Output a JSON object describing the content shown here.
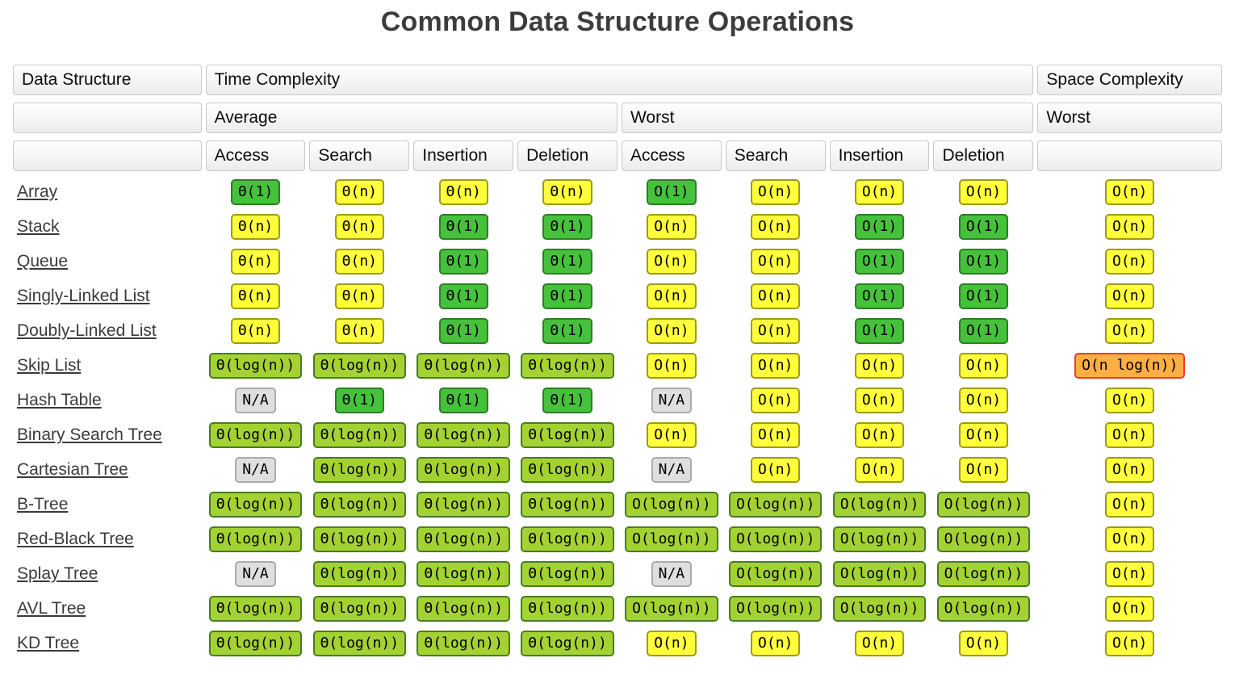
{
  "page": {
    "title": "Common Data Structure Operations"
  },
  "colors": {
    "excellent_green": "#46c13c",
    "good_yellowgreen": "#a4d233",
    "fair_yellow": "#ffff3b",
    "bad_orange": "#ffae45",
    "bad_border_red": "#ef3b24",
    "na_gray": "#dfdfdf",
    "header_border": "#c9c9c9",
    "title_text": "#3c3c3c"
  },
  "table": {
    "headers": {
      "data_structure": "Data Structure",
      "time_complexity": "Time Complexity",
      "space_complexity": "Space Complexity",
      "average": "Average",
      "worst_time": "Worst",
      "worst_space": "Worst",
      "operations": [
        "Access",
        "Search",
        "Insertion",
        "Deletion"
      ]
    },
    "rows": [
      {
        "name": "Array",
        "cells": [
          {
            "text": "Θ(1)",
            "level": "excellent"
          },
          {
            "text": "Θ(n)",
            "level": "fair"
          },
          {
            "text": "Θ(n)",
            "level": "fair"
          },
          {
            "text": "Θ(n)",
            "level": "fair"
          },
          {
            "text": "O(1)",
            "level": "excellent"
          },
          {
            "text": "O(n)",
            "level": "fair"
          },
          {
            "text": "O(n)",
            "level": "fair"
          },
          {
            "text": "O(n)",
            "level": "fair"
          },
          {
            "text": "O(n)",
            "level": "fair"
          }
        ]
      },
      {
        "name": "Stack",
        "cells": [
          {
            "text": "Θ(n)",
            "level": "fair"
          },
          {
            "text": "Θ(n)",
            "level": "fair"
          },
          {
            "text": "Θ(1)",
            "level": "excellent"
          },
          {
            "text": "Θ(1)",
            "level": "excellent"
          },
          {
            "text": "O(n)",
            "level": "fair"
          },
          {
            "text": "O(n)",
            "level": "fair"
          },
          {
            "text": "O(1)",
            "level": "excellent"
          },
          {
            "text": "O(1)",
            "level": "excellent"
          },
          {
            "text": "O(n)",
            "level": "fair"
          }
        ]
      },
      {
        "name": "Queue",
        "cells": [
          {
            "text": "Θ(n)",
            "level": "fair"
          },
          {
            "text": "Θ(n)",
            "level": "fair"
          },
          {
            "text": "Θ(1)",
            "level": "excellent"
          },
          {
            "text": "Θ(1)",
            "level": "excellent"
          },
          {
            "text": "O(n)",
            "level": "fair"
          },
          {
            "text": "O(n)",
            "level": "fair"
          },
          {
            "text": "O(1)",
            "level": "excellent"
          },
          {
            "text": "O(1)",
            "level": "excellent"
          },
          {
            "text": "O(n)",
            "level": "fair"
          }
        ]
      },
      {
        "name": "Singly-Linked List",
        "cells": [
          {
            "text": "Θ(n)",
            "level": "fair"
          },
          {
            "text": "Θ(n)",
            "level": "fair"
          },
          {
            "text": "Θ(1)",
            "level": "excellent"
          },
          {
            "text": "Θ(1)",
            "level": "excellent"
          },
          {
            "text": "O(n)",
            "level": "fair"
          },
          {
            "text": "O(n)",
            "level": "fair"
          },
          {
            "text": "O(1)",
            "level": "excellent"
          },
          {
            "text": "O(1)",
            "level": "excellent"
          },
          {
            "text": "O(n)",
            "level": "fair"
          }
        ]
      },
      {
        "name": "Doubly-Linked List",
        "cells": [
          {
            "text": "Θ(n)",
            "level": "fair"
          },
          {
            "text": "Θ(n)",
            "level": "fair"
          },
          {
            "text": "Θ(1)",
            "level": "excellent"
          },
          {
            "text": "Θ(1)",
            "level": "excellent"
          },
          {
            "text": "O(n)",
            "level": "fair"
          },
          {
            "text": "O(n)",
            "level": "fair"
          },
          {
            "text": "O(1)",
            "level": "excellent"
          },
          {
            "text": "O(1)",
            "level": "excellent"
          },
          {
            "text": "O(n)",
            "level": "fair"
          }
        ]
      },
      {
        "name": "Skip List",
        "cells": [
          {
            "text": "Θ(log(n))",
            "level": "good"
          },
          {
            "text": "Θ(log(n))",
            "level": "good"
          },
          {
            "text": "Θ(log(n))",
            "level": "good"
          },
          {
            "text": "Θ(log(n))",
            "level": "good"
          },
          {
            "text": "O(n)",
            "level": "fair"
          },
          {
            "text": "O(n)",
            "level": "fair"
          },
          {
            "text": "O(n)",
            "level": "fair"
          },
          {
            "text": "O(n)",
            "level": "fair"
          },
          {
            "text": "O(n log(n))",
            "level": "bad"
          }
        ]
      },
      {
        "name": "Hash Table",
        "cells": [
          {
            "text": "N/A",
            "level": "na"
          },
          {
            "text": "Θ(1)",
            "level": "excellent"
          },
          {
            "text": "Θ(1)",
            "level": "excellent"
          },
          {
            "text": "Θ(1)",
            "level": "excellent"
          },
          {
            "text": "N/A",
            "level": "na"
          },
          {
            "text": "O(n)",
            "level": "fair"
          },
          {
            "text": "O(n)",
            "level": "fair"
          },
          {
            "text": "O(n)",
            "level": "fair"
          },
          {
            "text": "O(n)",
            "level": "fair"
          }
        ]
      },
      {
        "name": "Binary Search Tree",
        "cells": [
          {
            "text": "Θ(log(n))",
            "level": "good"
          },
          {
            "text": "Θ(log(n))",
            "level": "good"
          },
          {
            "text": "Θ(log(n))",
            "level": "good"
          },
          {
            "text": "Θ(log(n))",
            "level": "good"
          },
          {
            "text": "O(n)",
            "level": "fair"
          },
          {
            "text": "O(n)",
            "level": "fair"
          },
          {
            "text": "O(n)",
            "level": "fair"
          },
          {
            "text": "O(n)",
            "level": "fair"
          },
          {
            "text": "O(n)",
            "level": "fair"
          }
        ]
      },
      {
        "name": "Cartesian Tree",
        "cells": [
          {
            "text": "N/A",
            "level": "na"
          },
          {
            "text": "Θ(log(n))",
            "level": "good"
          },
          {
            "text": "Θ(log(n))",
            "level": "good"
          },
          {
            "text": "Θ(log(n))",
            "level": "good"
          },
          {
            "text": "N/A",
            "level": "na"
          },
          {
            "text": "O(n)",
            "level": "fair"
          },
          {
            "text": "O(n)",
            "level": "fair"
          },
          {
            "text": "O(n)",
            "level": "fair"
          },
          {
            "text": "O(n)",
            "level": "fair"
          }
        ]
      },
      {
        "name": "B-Tree",
        "cells": [
          {
            "text": "Θ(log(n))",
            "level": "good"
          },
          {
            "text": "Θ(log(n))",
            "level": "good"
          },
          {
            "text": "Θ(log(n))",
            "level": "good"
          },
          {
            "text": "Θ(log(n))",
            "level": "good"
          },
          {
            "text": "O(log(n))",
            "level": "good"
          },
          {
            "text": "O(log(n))",
            "level": "good"
          },
          {
            "text": "O(log(n))",
            "level": "good"
          },
          {
            "text": "O(log(n))",
            "level": "good"
          },
          {
            "text": "O(n)",
            "level": "fair"
          }
        ]
      },
      {
        "name": "Red-Black Tree",
        "cells": [
          {
            "text": "Θ(log(n))",
            "level": "good"
          },
          {
            "text": "Θ(log(n))",
            "level": "good"
          },
          {
            "text": "Θ(log(n))",
            "level": "good"
          },
          {
            "text": "Θ(log(n))",
            "level": "good"
          },
          {
            "text": "O(log(n))",
            "level": "good"
          },
          {
            "text": "O(log(n))",
            "level": "good"
          },
          {
            "text": "O(log(n))",
            "level": "good"
          },
          {
            "text": "O(log(n))",
            "level": "good"
          },
          {
            "text": "O(n)",
            "level": "fair"
          }
        ]
      },
      {
        "name": "Splay Tree",
        "cells": [
          {
            "text": "N/A",
            "level": "na"
          },
          {
            "text": "Θ(log(n))",
            "level": "good"
          },
          {
            "text": "Θ(log(n))",
            "level": "good"
          },
          {
            "text": "Θ(log(n))",
            "level": "good"
          },
          {
            "text": "N/A",
            "level": "na"
          },
          {
            "text": "O(log(n))",
            "level": "good"
          },
          {
            "text": "O(log(n))",
            "level": "good"
          },
          {
            "text": "O(log(n))",
            "level": "good"
          },
          {
            "text": "O(n)",
            "level": "fair"
          }
        ]
      },
      {
        "name": "AVL Tree",
        "cells": [
          {
            "text": "Θ(log(n))",
            "level": "good"
          },
          {
            "text": "Θ(log(n))",
            "level": "good"
          },
          {
            "text": "Θ(log(n))",
            "level": "good"
          },
          {
            "text": "Θ(log(n))",
            "level": "good"
          },
          {
            "text": "O(log(n))",
            "level": "good"
          },
          {
            "text": "O(log(n))",
            "level": "good"
          },
          {
            "text": "O(log(n))",
            "level": "good"
          },
          {
            "text": "O(log(n))",
            "level": "good"
          },
          {
            "text": "O(n)",
            "level": "fair"
          }
        ]
      },
      {
        "name": "KD Tree",
        "cells": [
          {
            "text": "Θ(log(n))",
            "level": "good"
          },
          {
            "text": "Θ(log(n))",
            "level": "good"
          },
          {
            "text": "Θ(log(n))",
            "level": "good"
          },
          {
            "text": "Θ(log(n))",
            "level": "good"
          },
          {
            "text": "O(n)",
            "level": "fair"
          },
          {
            "text": "O(n)",
            "level": "fair"
          },
          {
            "text": "O(n)",
            "level": "fair"
          },
          {
            "text": "O(n)",
            "level": "fair"
          },
          {
            "text": "O(n)",
            "level": "fair"
          }
        ]
      }
    ]
  }
}
